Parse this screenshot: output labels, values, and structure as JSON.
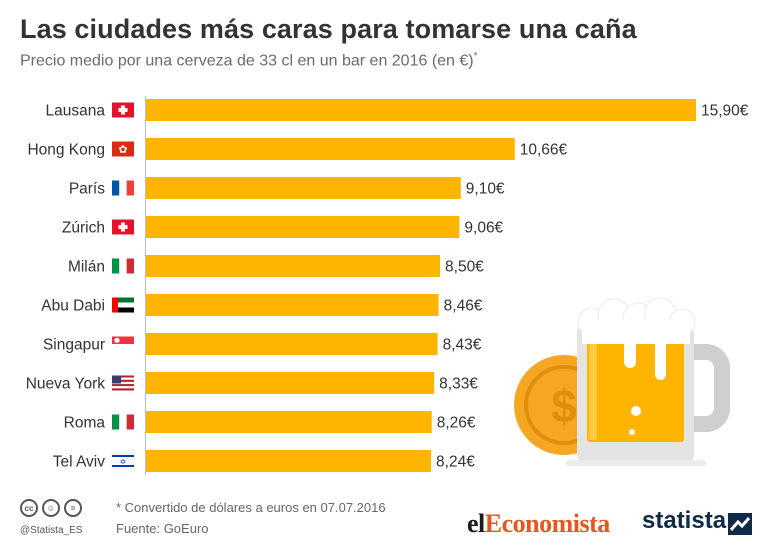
{
  "title": "Las ciudades más caras para tomarse una caña",
  "subtitle": "Precio medio por una cerveza de 33 cl en un bar en 2016 (en €)",
  "subtitle_mark": "*",
  "colors": {
    "bar": "#FFB400",
    "axis": "#bdbdbd",
    "text": "#333333",
    "coin": "#F5A623",
    "beer": "#FFB400",
    "mug": "#d6d6d6"
  },
  "chart_data": {
    "type": "bar",
    "orientation": "horizontal",
    "categories": [
      "Lausana",
      "Hong Kong",
      "París",
      "Zúrich",
      "Milán",
      "Abu Dabi",
      "Singapur",
      "Nueva York",
      "Roma",
      "Tel Aviv"
    ],
    "values": [
      15.9,
      10.66,
      9.1,
      9.06,
      8.5,
      8.46,
      8.43,
      8.33,
      8.26,
      8.24
    ],
    "labels": [
      "15,90€",
      "10,66€",
      "9,10€",
      "9,06€",
      "8,50€",
      "8,46€",
      "8,43€",
      "8,33€",
      "8,26€",
      "8,24€"
    ],
    "flags": [
      "switzerland-flag",
      "hong-kong-flag",
      "france-flag",
      "switzerland-flag",
      "italy-flag",
      "uae-flag",
      "singapore-flag",
      "usa-flag",
      "italy-flag",
      "israel-flag"
    ],
    "xlim": [
      0,
      15.9
    ],
    "grid": false,
    "title": "Las ciudades más caras para tomarse una caña",
    "xlabel": "",
    "ylabel": ""
  },
  "footer": {
    "note": "* Convertido de dólares a euros en 07.07.2016",
    "source": "Fuente: GoEuro",
    "handle": "@Statista_ES",
    "cc_icons": [
      "cc",
      "by",
      "="
    ]
  },
  "brands": {
    "el": "el",
    "economista": "Economista",
    "statista": "statista"
  }
}
